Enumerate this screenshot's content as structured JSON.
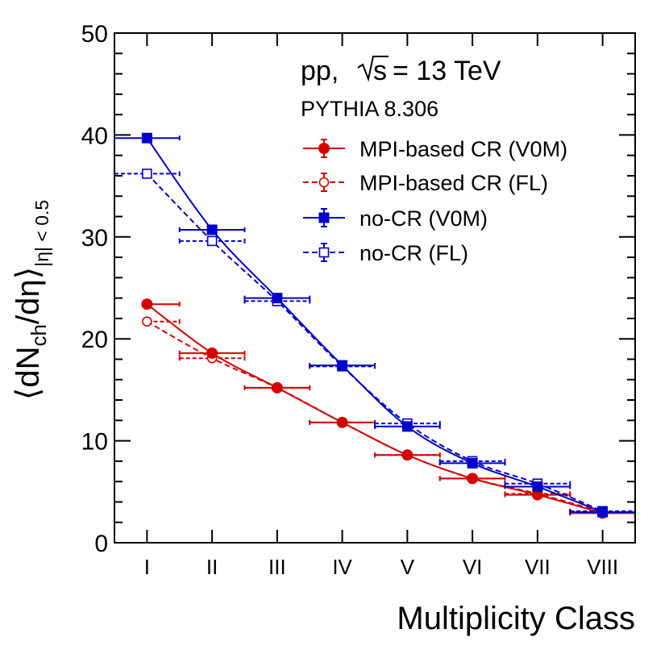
{
  "chart_data": {
    "type": "line",
    "title": "",
    "annotations": {
      "system": "pp,",
      "energy": "= 13 TeV",
      "sqrt_symbol": "s",
      "generator": "PYTHIA 8.306"
    },
    "xlabel": "Multiplicity Class",
    "ylabel": {
      "main": "⟨dN",
      "sub_ch": "ch",
      "mid": "/dη⟩",
      "sub_eta": "|η| < 0.5"
    },
    "categories": [
      "I",
      "II",
      "III",
      "IV",
      "V",
      "VI",
      "VII",
      "VIII"
    ],
    "ylim": [
      0,
      50
    ],
    "yticks": [
      0,
      10,
      20,
      30,
      40,
      50
    ],
    "grid": false,
    "legend_position": "top-right",
    "series": [
      {
        "name": "MPI-based CR (V0M)",
        "color": "#d40000",
        "marker": "filled-circle",
        "linestyle": "solid",
        "values": [
          23.4,
          18.6,
          15.2,
          11.8,
          8.6,
          6.3,
          4.7,
          2.9
        ],
        "xerr": [
          [
            0.0,
            0.5
          ],
          [
            0.5,
            1.5
          ],
          [
            1.5,
            2.5
          ],
          [
            2.5,
            3.5
          ],
          [
            3.5,
            4.5
          ],
          [
            4.5,
            5.5
          ],
          [
            5.5,
            6.5
          ],
          [
            6.5,
            7.5
          ]
        ]
      },
      {
        "name": "MPI-based CR (FL)",
        "color": "#d40000",
        "marker": "open-circle",
        "linestyle": "dashed",
        "values": [
          21.7,
          18.1,
          15.2,
          11.8,
          8.6,
          6.3,
          4.8,
          3.0
        ],
        "xerr": [
          [
            0.0,
            0.5
          ],
          [
            0.5,
            1.5
          ],
          [
            1.5,
            2.5
          ],
          [
            2.5,
            3.5
          ],
          [
            3.5,
            4.5
          ],
          [
            4.5,
            5.5
          ],
          [
            5.5,
            6.5
          ],
          [
            6.5,
            7.5
          ]
        ]
      },
      {
        "name": "no-CR (V0M)",
        "color": "#0000cc",
        "marker": "filled-square",
        "linestyle": "solid",
        "values": [
          39.7,
          30.7,
          24.0,
          17.4,
          11.4,
          7.8,
          5.5,
          3.0
        ],
        "xerr": [
          [
            -0.5,
            0.5
          ],
          [
            0.5,
            1.5
          ],
          [
            1.5,
            2.5
          ],
          [
            2.5,
            3.5
          ],
          [
            3.5,
            4.5
          ],
          [
            4.5,
            5.5
          ],
          [
            5.5,
            6.5
          ],
          [
            6.5,
            7.5
          ]
        ]
      },
      {
        "name": "no-CR (FL)",
        "color": "#0000cc",
        "marker": "open-square",
        "linestyle": "dashed",
        "values": [
          36.2,
          29.6,
          23.7,
          17.3,
          11.7,
          8.0,
          5.8,
          3.1
        ],
        "xerr": [
          [
            -0.5,
            0.5
          ],
          [
            0.5,
            1.5
          ],
          [
            1.5,
            2.5
          ],
          [
            2.5,
            3.5
          ],
          [
            3.5,
            4.5
          ],
          [
            4.5,
            5.5
          ],
          [
            5.5,
            6.5
          ],
          [
            6.5,
            7.5
          ]
        ]
      }
    ]
  }
}
